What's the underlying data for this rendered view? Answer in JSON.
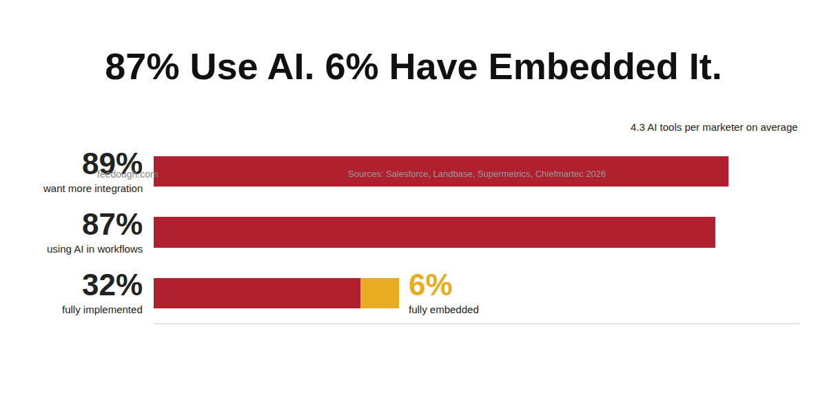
{
  "chart_data": {
    "type": "bar",
    "title": "87% Use AI. 6% Have Embedded It.",
    "annotation": "4.3 AI tools per marketer on average",
    "source": "Sources: Salesforce, Landbase, Supermetrics, Chiefmartec 2026",
    "credit": "feedough.com",
    "orientation": "horizontal",
    "stacked": true,
    "data_labels": true,
    "tick_labels": false,
    "grid": false,
    "xlim": [
      0,
      100
    ],
    "categories": [
      "want more integration",
      "using AI in workflows",
      "fully implemented"
    ],
    "series": [
      {
        "color": "#b0202e",
        "values": [
          89,
          87,
          32
        ],
        "value_labels": [
          "89%",
          "87%",
          "32%"
        ]
      },
      {
        "name": "fully embedded",
        "color": "#e8ac22",
        "values": [
          null,
          null,
          6
        ],
        "value_labels": [
          null,
          null,
          "6%"
        ]
      }
    ]
  }
}
